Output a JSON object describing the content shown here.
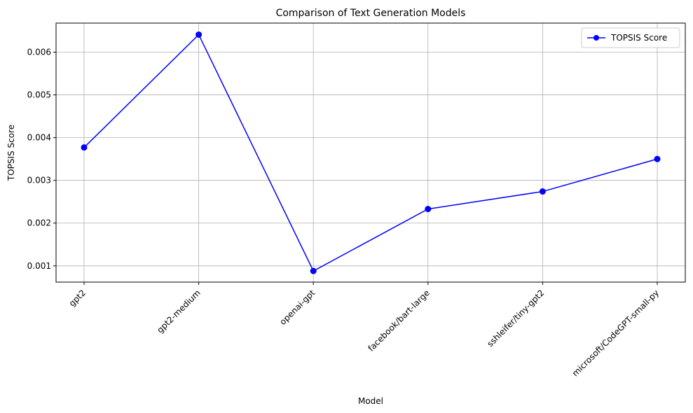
{
  "chart_data": {
    "type": "line",
    "title": "Comparison of Text Generation Models",
    "xlabel": "Model",
    "ylabel": "TOPSIS Score",
    "categories": [
      "gpt2",
      "gpt2-medium",
      "openai-gpt",
      "facebook/bart-large",
      "sshleifer/tiny-gpt2",
      "microsoft/CodeGPT-small-py"
    ],
    "series": [
      {
        "name": "TOPSIS Score",
        "values": [
          0.00377,
          0.00641,
          0.00088,
          0.00233,
          0.00274,
          0.0035
        ],
        "color": "#0000ff",
        "marker": "circle"
      }
    ],
    "ylim": [
      0.00062,
      0.00668
    ],
    "yticks": [
      "0.001",
      "0.002",
      "0.003",
      "0.004",
      "0.005",
      "0.006"
    ],
    "grid": true,
    "legend_position": "top-right"
  }
}
